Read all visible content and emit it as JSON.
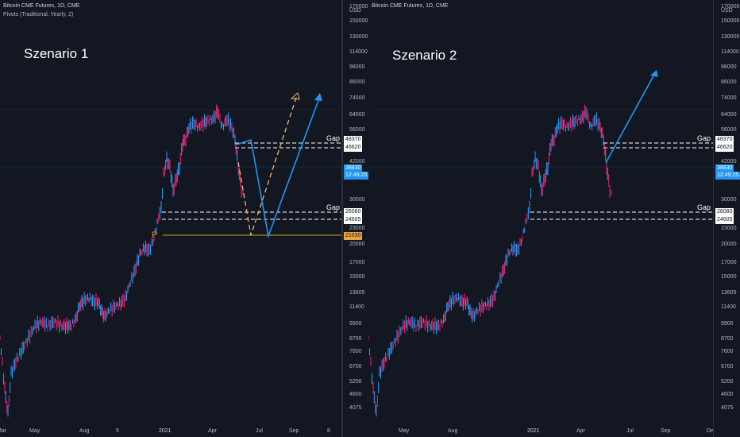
{
  "pane1": {
    "symbol": "Bitcoin CME Futures, 1D, CME",
    "indicator": "Pivots (Traditional, Yearly, 2)",
    "scenario": "Szenario 1",
    "gap_label_top": "Gap",
    "gap_label_bottom": "Gap",
    "pivot_label": "P",
    "currency": "USD",
    "price_ticks": [
      "170000",
      "150000",
      "130000",
      "114000",
      "98000",
      "86000",
      "74000",
      "64000",
      "56000",
      "42000",
      "30000",
      "23000",
      "20000",
      "17000",
      "15000",
      "13605",
      "11400",
      "9900",
      "8700",
      "7600",
      "6700",
      "5200",
      "4600",
      "4075"
    ],
    "price_boxes": {
      "upper_hi": "48370",
      "upper_lo": "46620",
      "last": "38830",
      "last_time": "12:49:25",
      "lower_hi": "26080",
      "lower_lo": "24605",
      "pivot": "21030"
    },
    "time_labels": [
      "Mar",
      "May",
      "Aug",
      "5",
      "2021",
      "Apr",
      "Jul",
      "Sep",
      "8"
    ]
  },
  "pane2": {
    "symbol": "Bitcoin CME Futures, 1D, CME",
    "scenario": "Szenario 2",
    "gap_label_top": "Gap",
    "gap_label_bottom": "Gap",
    "currency": "USD",
    "price_ticks": [
      "170000",
      "150000",
      "130000",
      "114000",
      "98000",
      "86000",
      "74000",
      "64000",
      "56000",
      "42000",
      "30000",
      "23000",
      "20000",
      "17000",
      "15000",
      "13605",
      "11400",
      "9900",
      "8700",
      "7600",
      "6700",
      "5200",
      "4600",
      "4075"
    ],
    "price_boxes": {
      "upper_hi": "48370",
      "upper_lo": "46620",
      "last": "38830",
      "last_time": "12:49:25",
      "lower_hi": "26080",
      "lower_lo": "24605"
    },
    "time_labels": [
      "May",
      "Aug",
      "2021",
      "Apr",
      "Jul",
      "Sep",
      "De"
    ]
  },
  "colors": {
    "background": "#131722",
    "up": "#2196f3",
    "down": "#e91e63",
    "arrow_blue": "#2196f3",
    "arrow_orange": "#e8b86d",
    "pivot_line": "#c9a227",
    "gap_line": "#ffffff"
  }
}
